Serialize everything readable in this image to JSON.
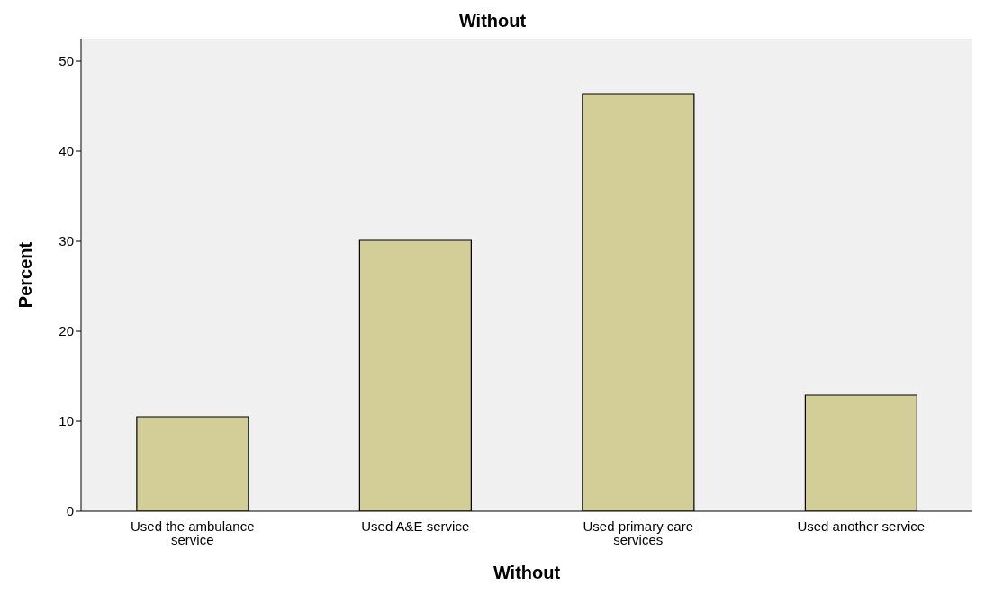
{
  "chart_data": {
    "type": "bar",
    "title": "Without",
    "xlabel": "Without",
    "ylabel": "Percent",
    "categories": [
      "Used the ambulance service",
      "Used A&E service",
      "Used primary care services",
      "Used another service"
    ],
    "values": [
      10.5,
      30.1,
      46.4,
      12.9
    ],
    "color": "#d3ce97",
    "ylim": [
      0,
      52.5
    ],
    "yticks": [
      0,
      10,
      20,
      30,
      40,
      50
    ],
    "grid": false
  }
}
